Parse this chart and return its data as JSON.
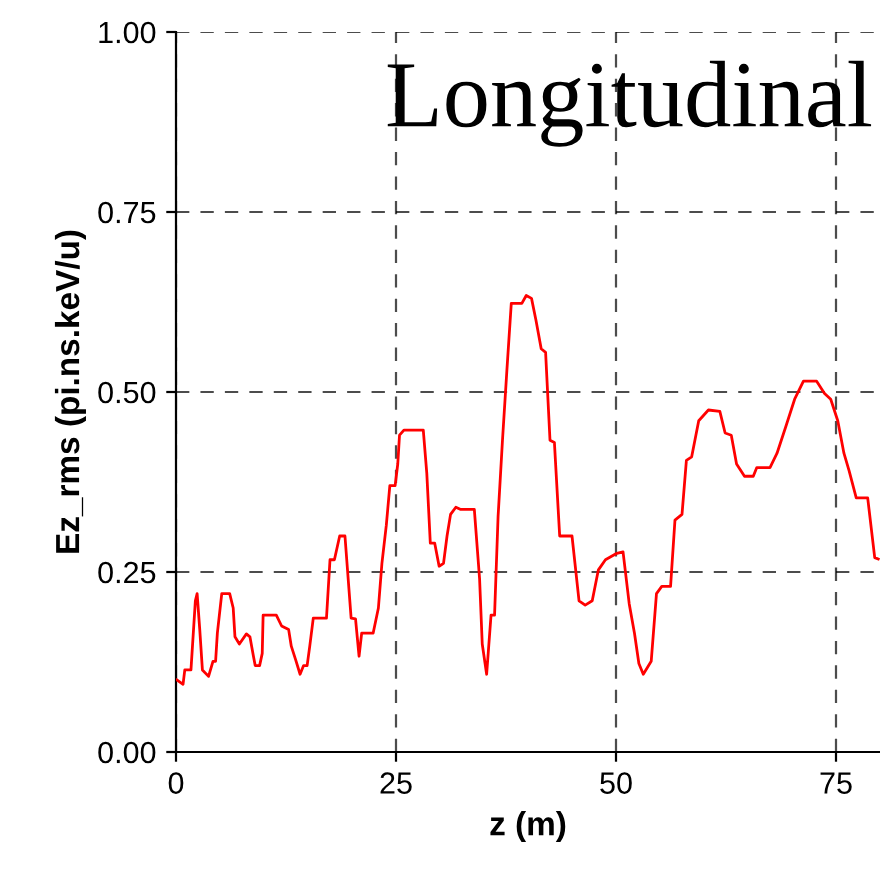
{
  "chart_data": {
    "type": "line",
    "title": "Longitudinal",
    "xlabel": "z (m)",
    "ylabel": "Ez_rms (pi.ns.keV/u)",
    "xlim": [
      0,
      80
    ],
    "xticks": [
      0,
      25,
      50,
      75
    ],
    "ylim": [
      0,
      1
    ],
    "yticks": [
      {
        "value": 0,
        "label": "0.00"
      },
      {
        "value": 0.25,
        "label": "0.25"
      },
      {
        "value": 0.5,
        "label": "0.50"
      },
      {
        "value": 0.75,
        "label": "0.75"
      },
      {
        "value": 1,
        "label": "1.00"
      }
    ],
    "grid": true,
    "line_style": "solid",
    "marker": "none",
    "x": [
      0.1,
      0.8,
      1.0,
      1.7,
      2.2,
      2.4,
      2.7,
      3.0,
      3.7,
      4.2,
      4.5,
      4.7,
      5.2,
      6.1,
      6.5,
      6.7,
      7.2,
      8.0,
      8.4,
      8.8,
      9.0,
      9.5,
      9.8,
      9.9,
      11.4,
      12.0,
      12.8,
      13.1,
      13.6,
      14.1,
      14.5,
      14.9,
      15.2,
      15.6,
      17.1,
      17.5,
      18.0,
      18.6,
      19.2,
      19.9,
      20.4,
      20.8,
      21.1,
      22.4,
      23.0,
      23.4,
      23.9,
      24.3,
      24.9,
      25.2,
      25.4,
      25.9,
      28.1,
      28.5,
      28.9,
      29.4,
      29.9,
      30.4,
      30.8,
      31.2,
      31.8,
      32.3,
      33.9,
      34.5,
      34.8,
      35.3,
      35.8,
      36.2,
      36.6,
      37.1,
      37.6,
      38.1,
      39.3,
      39.8,
      40.4,
      40.9,
      41.5,
      42.0,
      42.5,
      43.0,
      43.6,
      45.0,
      45.8,
      46.5,
      47.3,
      48.0,
      48.8,
      50.1,
      50.8,
      51.5,
      52.1,
      52.6,
      53.1,
      54.0,
      54.6,
      55.2,
      56.2,
      56.7,
      57.5,
      58.0,
      58.6,
      59.4,
      60.5,
      61.8,
      62.4,
      63.1,
      63.7,
      64.6,
      65.6,
      66.0,
      67.5,
      68.3,
      69.3,
      70.3,
      71.3,
      72.8,
      73.7,
      74.4,
      75.2,
      75.9,
      76.5,
      77.3,
      78.6,
      79.4,
      79.8
    ],
    "series": [
      {
        "color": "#ff0000",
        "values": [
          0.1,
          0.094,
          0.114,
          0.114,
          0.21,
          0.22,
          0.17,
          0.114,
          0.105,
          0.126,
          0.126,
          0.165,
          0.22,
          0.22,
          0.2,
          0.16,
          0.15,
          0.164,
          0.16,
          0.133,
          0.12,
          0.12,
          0.137,
          0.19,
          0.19,
          0.175,
          0.17,
          0.147,
          0.128,
          0.108,
          0.12,
          0.12,
          0.147,
          0.186,
          0.186,
          0.267,
          0.267,
          0.3,
          0.3,
          0.186,
          0.185,
          0.133,
          0.165,
          0.165,
          0.2,
          0.262,
          0.315,
          0.37,
          0.37,
          0.4,
          0.44,
          0.447,
          0.447,
          0.387,
          0.29,
          0.29,
          0.258,
          0.262,
          0.3,
          0.33,
          0.34,
          0.337,
          0.337,
          0.24,
          0.15,
          0.108,
          0.19,
          0.19,
          0.327,
          0.433,
          0.53,
          0.623,
          0.623,
          0.634,
          0.63,
          0.6,
          0.56,
          0.555,
          0.433,
          0.43,
          0.3,
          0.3,
          0.21,
          0.204,
          0.21,
          0.253,
          0.267,
          0.276,
          0.278,
          0.206,
          0.165,
          0.123,
          0.108,
          0.126,
          0.22,
          0.23,
          0.23,
          0.322,
          0.33,
          0.405,
          0.41,
          0.46,
          0.475,
          0.473,
          0.443,
          0.44,
          0.4,
          0.383,
          0.383,
          0.395,
          0.395,
          0.415,
          0.452,
          0.49,
          0.515,
          0.515,
          0.498,
          0.49,
          0.46,
          0.415,
          0.39,
          0.353,
          0.353,
          0.27,
          0.268
        ]
      }
    ]
  }
}
